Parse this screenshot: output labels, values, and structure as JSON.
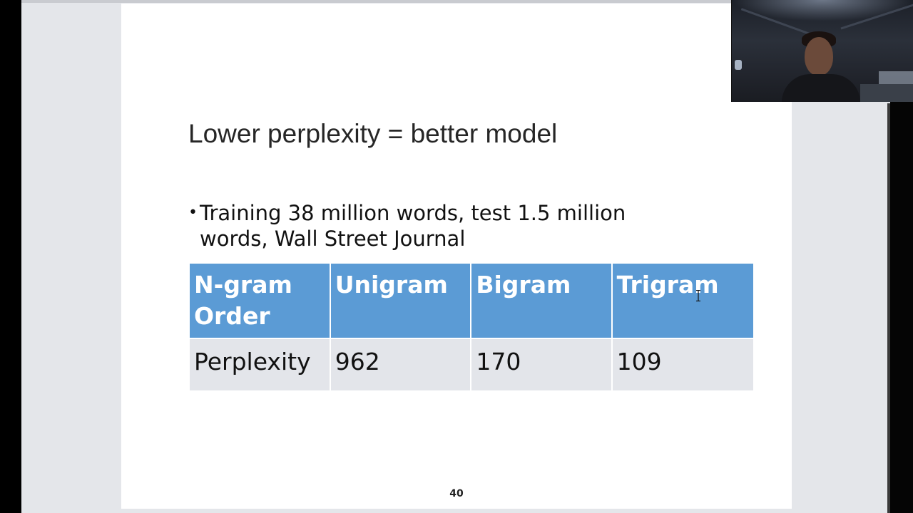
{
  "slide": {
    "title": "Lower perplexity = better model",
    "bullet_marker": "•",
    "bullet_text": "Training 38 million words, test 1.5 million words, Wall Street Journal",
    "page_number": "40"
  },
  "table": {
    "header": [
      "N-gram Order",
      "Unigram",
      "Bigram",
      "Trigram"
    ],
    "row": [
      "Perplexity",
      "962",
      "170",
      "109"
    ]
  },
  "colors": {
    "table_header_bg": "#5b9bd5",
    "table_row_bg": "#e3e5ea",
    "viewer_bg": "#e4e6ea"
  },
  "icons": {
    "text_cursor": "text-cursor-icon"
  }
}
